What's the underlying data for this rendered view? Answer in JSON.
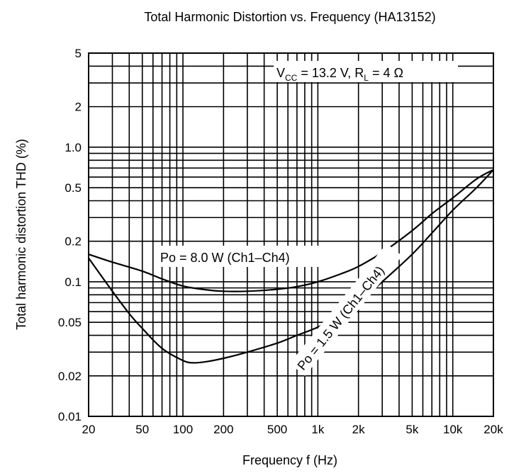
{
  "chart_data": {
    "type": "line",
    "title": "Total Harmonic Distortion vs. Frequency (HA13152)",
    "xlabel": "Frequency  f (Hz)",
    "ylabel": "Total harmonic distortion  THD (%)",
    "x_scale": "log",
    "y_scale": "log",
    "xlim": [
      20,
      20000
    ],
    "ylim": [
      0.01,
      5
    ],
    "grid": true,
    "x_ticks": [
      {
        "v": 20,
        "label": "20"
      },
      {
        "v": 50,
        "label": "50"
      },
      {
        "v": 100,
        "label": "100"
      },
      {
        "v": 200,
        "label": "200"
      },
      {
        "v": 500,
        "label": "500"
      },
      {
        "v": 1000,
        "label": "1k"
      },
      {
        "v": 2000,
        "label": "2k"
      },
      {
        "v": 5000,
        "label": "5k"
      },
      {
        "v": 10000,
        "label": "10k"
      },
      {
        "v": 20000,
        "label": "20k"
      }
    ],
    "y_ticks": [
      {
        "v": 0.01,
        "label": "0.01"
      },
      {
        "v": 0.02,
        "label": "0.02"
      },
      {
        "v": 0.05,
        "label": "0.05"
      },
      {
        "v": 0.1,
        "label": "0.1"
      },
      {
        "v": 0.2,
        "label": "0.2"
      },
      {
        "v": 0.5,
        "label": "0.5"
      },
      {
        "v": 1.0,
        "label": "1.0"
      },
      {
        "v": 2,
        "label": "2"
      },
      {
        "v": 5,
        "label": "5"
      }
    ],
    "condition": {
      "vcc_label": "V",
      "vcc_sub": "CC",
      "vcc_value": " = 13.2 V, R",
      "rl_sub": "L",
      "rl_value": " = 4 Ω"
    },
    "series": [
      {
        "name": "Po = 8.0 W (Ch1–Ch4)",
        "x": [
          20,
          30,
          50,
          70,
          100,
          150,
          200,
          300,
          500,
          700,
          1000,
          1500,
          2000,
          3000,
          5000,
          7000,
          10000,
          15000,
          20000
        ],
        "y": [
          0.16,
          0.14,
          0.12,
          0.105,
          0.093,
          0.087,
          0.085,
          0.085,
          0.088,
          0.092,
          0.1,
          0.115,
          0.13,
          0.165,
          0.24,
          0.32,
          0.42,
          0.58,
          0.68
        ]
      },
      {
        "name": "Po = 1.5 W (Ch1–Ch4)",
        "x": [
          20,
          30,
          40,
          50,
          70,
          100,
          120,
          150,
          200,
          300,
          500,
          700,
          1000,
          1500,
          2000,
          3000,
          5000,
          7000,
          10000,
          15000,
          20000
        ],
        "y": [
          0.15,
          0.085,
          0.058,
          0.045,
          0.032,
          0.026,
          0.025,
          0.0255,
          0.027,
          0.03,
          0.035,
          0.04,
          0.046,
          0.057,
          0.07,
          0.1,
          0.16,
          0.23,
          0.34,
          0.5,
          0.68
        ]
      }
    ]
  }
}
